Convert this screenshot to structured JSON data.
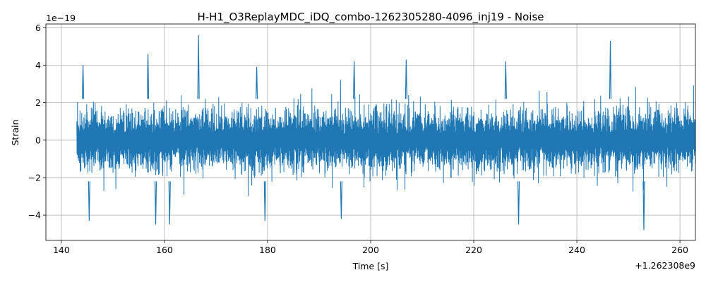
{
  "chart_data": {
    "type": "line",
    "title": "H-H1_O3ReplayMDC_iDQ_combo-1262305280-4096_inj19 - Noise",
    "xlabel": "Time [s]",
    "ylabel": "Strain",
    "x_offset_label": "+1.262308e9",
    "y_scale_label": "1e−19",
    "x_ticks": [
      140,
      160,
      180,
      200,
      220,
      240,
      260
    ],
    "x_tick_labels": [
      "140",
      "160",
      "180",
      "200",
      "220",
      "240",
      "260"
    ],
    "y_ticks": [
      -4,
      -2,
      0,
      2,
      4,
      6
    ],
    "y_tick_labels": [
      "−4",
      "−2",
      "0",
      "2",
      "4",
      "6"
    ],
    "xlim": [
      137,
      263
    ],
    "ylim": [
      -5.35,
      6.2
    ],
    "grid": true,
    "series": [
      {
        "color": "#1f77b4",
        "x_range": [
          143,
          263
        ],
        "typical_envelope": [
          -2.0,
          2.0
        ],
        "peaks": [
          {
            "x": 144.2,
            "y": 4.0
          },
          {
            "x": 156.8,
            "y": 4.6
          },
          {
            "x": 166.6,
            "y": 5.6
          },
          {
            "x": 177.9,
            "y": 3.9
          },
          {
            "x": 196.8,
            "y": 4.2
          },
          {
            "x": 206.9,
            "y": 4.3
          },
          {
            "x": 226.2,
            "y": 4.2
          },
          {
            "x": 246.5,
            "y": 5.3
          }
        ],
        "troughs": [
          {
            "x": 145.4,
            "y": -4.3
          },
          {
            "x": 158.3,
            "y": -4.5
          },
          {
            "x": 161.0,
            "y": -4.5
          },
          {
            "x": 179.5,
            "y": -4.3
          },
          {
            "x": 194.3,
            "y": -4.2
          },
          {
            "x": 228.7,
            "y": -4.5
          },
          {
            "x": 253.0,
            "y": -4.8
          }
        ]
      }
    ]
  }
}
